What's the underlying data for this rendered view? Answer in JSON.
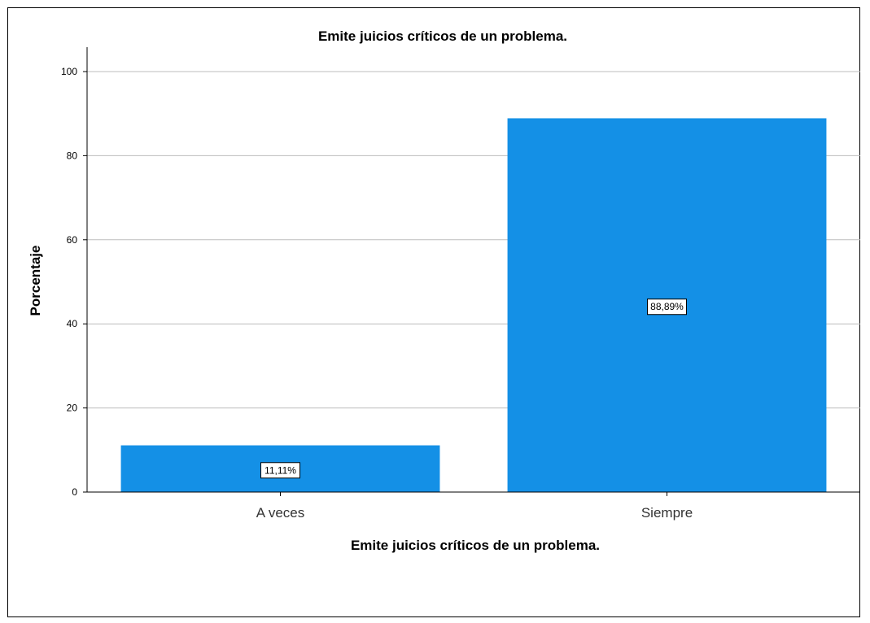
{
  "chart_data": {
    "type": "bar",
    "title": "Emite juicios críticos de un problema.",
    "xlabel": "Emite juicios críticos de un problema.",
    "ylabel": "Porcentaje",
    "categories": [
      "A veces",
      "Siempre"
    ],
    "values": [
      11.11,
      88.89
    ],
    "data_labels": [
      "11,11%",
      "88,89%"
    ],
    "ylim": [
      0,
      100
    ],
    "yticks": [
      0,
      20,
      40,
      60,
      80,
      100
    ],
    "grid": true,
    "legend": "none",
    "colors": {
      "bar": "#1490E6",
      "grid": "#BDBDBD",
      "axis": "#000000"
    }
  }
}
